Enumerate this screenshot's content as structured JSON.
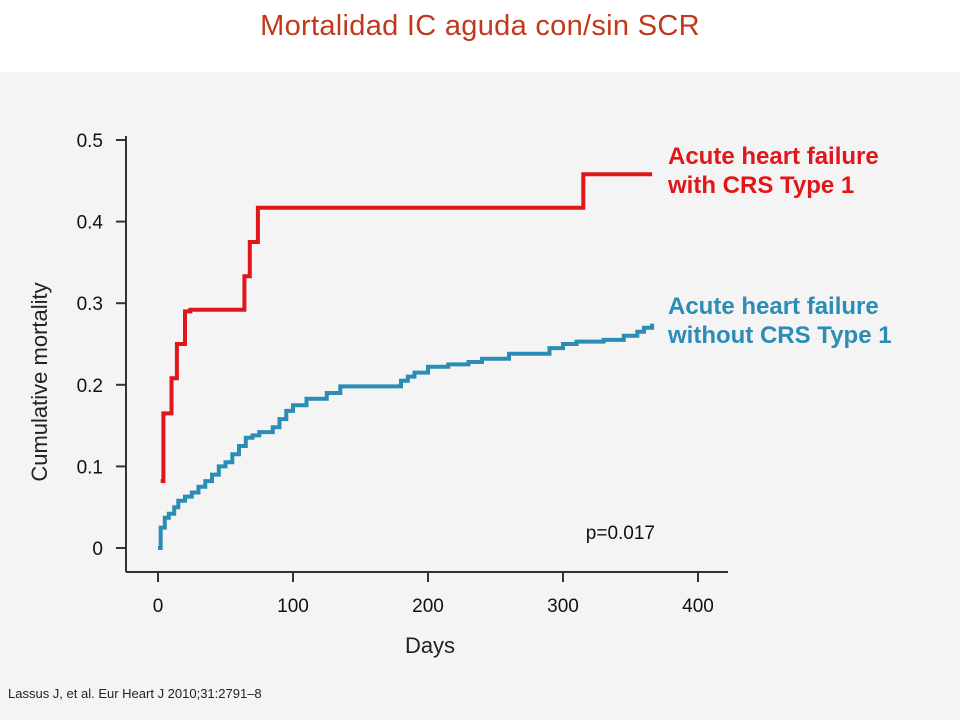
{
  "slide": {
    "title": "Mortalidad IC aguda con/sin SCR",
    "title_color": "#c0391b",
    "citation": "Lassus J, et al. Eur Heart J 2010;31:2791–8"
  },
  "chart_data": {
    "type": "line",
    "step": true,
    "xlabel": "Days",
    "ylabel": "Cumulative mortality",
    "xlim": [
      0,
      400
    ],
    "ylim": [
      0,
      0.5
    ],
    "xticks": [
      "0",
      "100",
      "200",
      "300",
      "400"
    ],
    "yticks": [
      "0",
      "0.1",
      "0.2",
      "0.3",
      "0.4",
      "0.5"
    ],
    "grid": false,
    "annotation": "p=0.017",
    "series": [
      {
        "name_lines": [
          "Acute heart failure",
          "with CRS Type 1"
        ],
        "color": "#e0161b",
        "x": [
          2,
          4,
          10,
          14,
          20,
          24,
          64,
          68,
          74,
          78,
          315,
          366
        ],
        "y": [
          0.082,
          0.165,
          0.208,
          0.25,
          0.29,
          0.292,
          0.333,
          0.375,
          0.417,
          0.417,
          0.458,
          0.458
        ]
      },
      {
        "name_lines": [
          "Acute heart failure",
          "without CRS Type 1"
        ],
        "color": "#2b8db5",
        "x": [
          0,
          2,
          5,
          8,
          12,
          15,
          20,
          25,
          30,
          35,
          40,
          45,
          50,
          55,
          60,
          65,
          70,
          75,
          85,
          90,
          95,
          100,
          110,
          125,
          135,
          180,
          185,
          190,
          200,
          215,
          230,
          240,
          260,
          290,
          300,
          310,
          330,
          345,
          355,
          360,
          366
        ],
        "y": [
          0.0,
          0.025,
          0.037,
          0.042,
          0.05,
          0.058,
          0.063,
          0.068,
          0.075,
          0.082,
          0.09,
          0.1,
          0.105,
          0.115,
          0.125,
          0.135,
          0.138,
          0.142,
          0.148,
          0.158,
          0.168,
          0.175,
          0.183,
          0.19,
          0.198,
          0.205,
          0.21,
          0.215,
          0.222,
          0.225,
          0.228,
          0.232,
          0.238,
          0.245,
          0.25,
          0.253,
          0.255,
          0.26,
          0.265,
          0.27,
          0.275
        ]
      }
    ]
  }
}
